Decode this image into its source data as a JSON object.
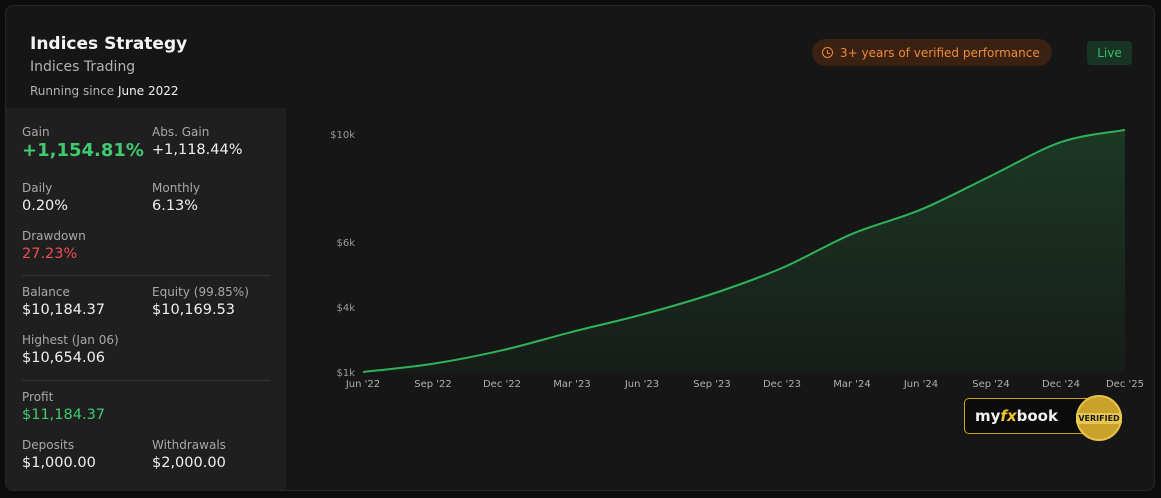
{
  "header": {
    "title": "Indices Strategy",
    "subtitle": "Indices Trading",
    "running_prefix": "Running since",
    "running_date": "June 2022",
    "verified_badge": "3+ years of verified performance",
    "live_badge": "Live"
  },
  "stats": {
    "gain_label": "Gain",
    "gain_value": "+1,154.81%",
    "abs_gain_label": "Abs. Gain",
    "abs_gain_value": "+1,118.44%",
    "daily_label": "Daily",
    "daily_value": "0.20%",
    "monthly_label": "Monthly",
    "monthly_value": "6.13%",
    "drawdown_label": "Drawdown",
    "drawdown_value": "27.23%",
    "balance_label": "Balance",
    "balance_value": "$10,184.37",
    "equity_label": "Equity (99.85%)",
    "equity_value": "$10,169.53",
    "highest_label": "Highest (Jan 06)",
    "highest_value": "$10,654.06",
    "profit_label": "Profit",
    "profit_value": "$11,184.37",
    "deposits_label": "Deposits",
    "deposits_value": "$1,000.00",
    "withdrawals_label": "Withdrawals",
    "withdrawals_value": "$2,000.00"
  },
  "badge": {
    "brand_my": "my",
    "brand_fx": "fx",
    "brand_book": "book",
    "seal_text": "VERIFIED"
  },
  "colors": {
    "line": "#2fb35a",
    "accent_orange": "#ef8a3a",
    "gain_green": "#3fcb70",
    "drawdown_red": "#f05050"
  },
  "chart_data": {
    "type": "area",
    "x_labels": [
      "Jun '22",
      "Sep '22",
      "Dec '22",
      "Mar '23",
      "Jun '23",
      "Sep '23",
      "Dec '23",
      "Mar '24",
      "Jun '24",
      "Sep '24",
      "Dec '24",
      "Dec '25"
    ],
    "y_ticks": [
      {
        "value": 1000,
        "label": "$1k"
      },
      {
        "value": 4000,
        "label": "$4k"
      },
      {
        "value": 6000,
        "label": "$6k"
      },
      {
        "value": 10000,
        "label": "$10k"
      }
    ],
    "points": [
      {
        "x": 0,
        "y": 1000
      },
      {
        "x": 1,
        "y": 1380
      },
      {
        "x": 2,
        "y": 2000
      },
      {
        "x": 3,
        "y": 2850
      },
      {
        "x": 4,
        "y": 3650
      },
      {
        "x": 5,
        "y": 4400
      },
      {
        "x": 6,
        "y": 5200
      },
      {
        "x": 7,
        "y": 6300
      },
      {
        "x": 8,
        "y": 7200
      },
      {
        "x": 9,
        "y": 8450
      },
      {
        "x": 10,
        "y": 9700
      },
      {
        "x": 11,
        "y": 10150
      }
    ]
  }
}
